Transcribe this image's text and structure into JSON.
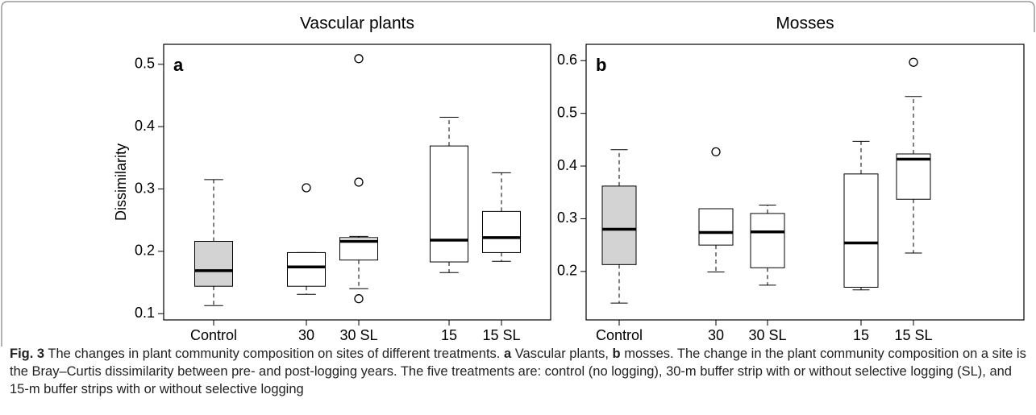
{
  "chart_data": [
    {
      "type": "box",
      "title": "Vascular plants",
      "panel": "a",
      "ylabel": "Dissimilarity",
      "categories": [
        "Control",
        "30",
        "30 SL",
        "15",
        "15 SL"
      ],
      "box_colors": [
        "#d3d3d3",
        "#ffffff",
        "#ffffff",
        "#ffffff",
        "#ffffff"
      ],
      "boxes": [
        {
          "whislo": 0.113,
          "q1": 0.144,
          "med": 0.169,
          "q3": 0.216,
          "whishi": 0.315,
          "fliers": []
        },
        {
          "whislo": 0.131,
          "q1": 0.144,
          "med": 0.175,
          "q3": 0.198,
          "whishi": 0.198,
          "fliers": [
            0.302
          ]
        },
        {
          "whislo": 0.14,
          "q1": 0.186,
          "med": 0.216,
          "q3": 0.222,
          "whishi": 0.224,
          "fliers": [
            0.124,
            0.311,
            0.509
          ]
        },
        {
          "whislo": 0.166,
          "q1": 0.183,
          "med": 0.218,
          "q3": 0.369,
          "whishi": 0.415,
          "fliers": []
        },
        {
          "whislo": 0.184,
          "q1": 0.198,
          "med": 0.222,
          "q3": 0.264,
          "whishi": 0.326,
          "fliers": []
        }
      ],
      "ylim": [
        0.09,
        0.532
      ],
      "yticks": [
        0.1,
        0.2,
        0.3,
        0.4,
        0.5
      ]
    },
    {
      "type": "box",
      "title": "Mosses",
      "panel": "b",
      "categories": [
        "Control",
        "30",
        "30 SL",
        "15",
        "15 SL"
      ],
      "box_colors": [
        "#d3d3d3",
        "#ffffff",
        "#ffffff",
        "#ffffff",
        "#ffffff"
      ],
      "boxes": [
        {
          "whislo": 0.14,
          "q1": 0.213,
          "med": 0.28,
          "q3": 0.362,
          "whishi": 0.431,
          "fliers": []
        },
        {
          "whislo": 0.199,
          "q1": 0.25,
          "med": 0.274,
          "q3": 0.319,
          "whishi": 0.319,
          "fliers": [
            0.427
          ]
        },
        {
          "whislo": 0.174,
          "q1": 0.207,
          "med": 0.275,
          "q3": 0.31,
          "whishi": 0.326,
          "fliers": []
        },
        {
          "whislo": 0.165,
          "q1": 0.17,
          "med": 0.254,
          "q3": 0.385,
          "whishi": 0.447,
          "fliers": []
        },
        {
          "whislo": 0.235,
          "q1": 0.337,
          "med": 0.413,
          "q3": 0.423,
          "whishi": 0.532,
          "fliers": [
            0.597
          ]
        }
      ],
      "ylim": [
        0.108,
        0.631
      ],
      "yticks": [
        0.2,
        0.3,
        0.4,
        0.5,
        0.6
      ]
    }
  ],
  "caption": {
    "label": "Fig. 3",
    "intro": "The changes in plant community composition on sites of different treatments.",
    "panel_a": "a",
    "text_a": "Vascular plants,",
    "panel_b": "b",
    "text_b": "mosses. The change in the plant community composition on a site is the Bray–Curtis dissimilarity between pre- and post-logging years. The five treatments are: control (no logging), 30-m buffer strip with or without selective logging (SL), and 15-m buffer strips with or without selective logging"
  }
}
